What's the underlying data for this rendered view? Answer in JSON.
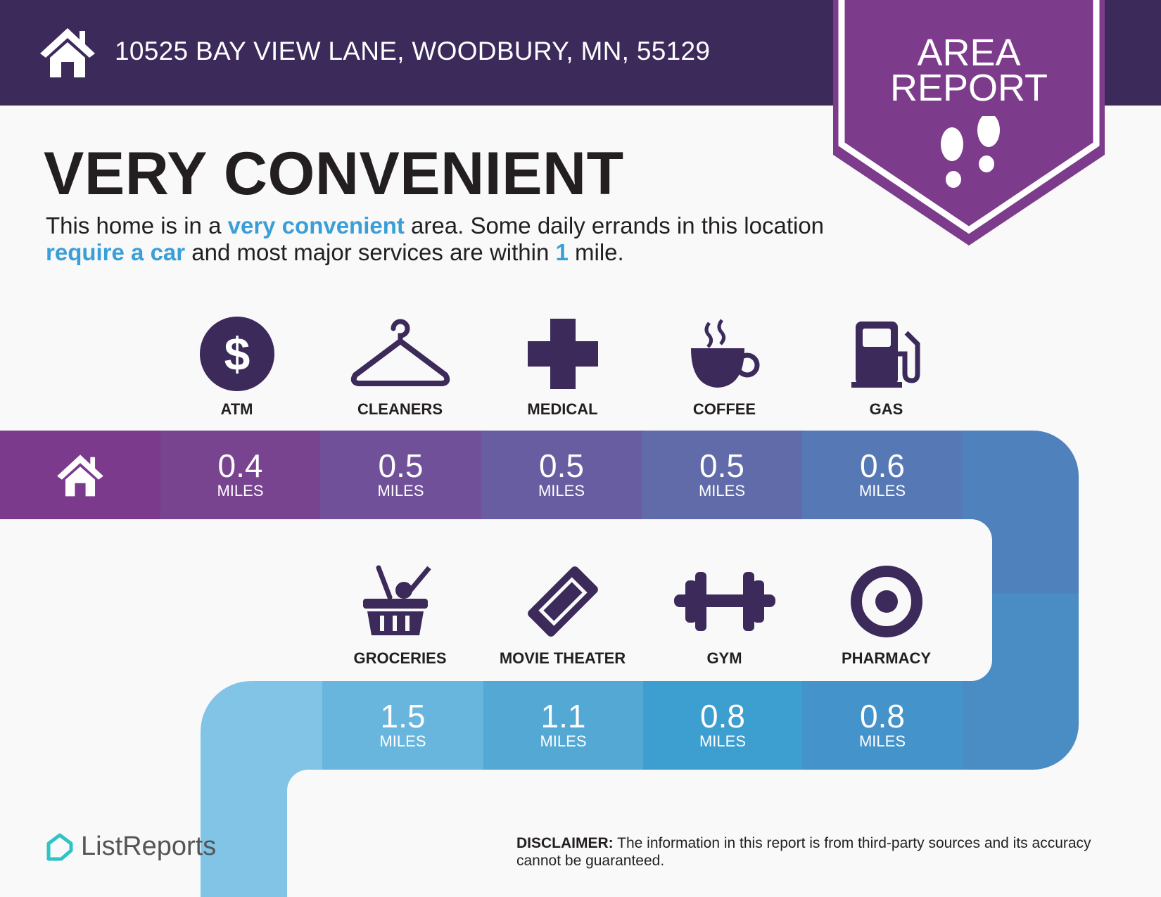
{
  "header": {
    "address": "10525 BAY VIEW LANE, WOODBURY, MN, 55129",
    "home_icon": "house-icon"
  },
  "badge": {
    "line1": "AREA",
    "line2": "REPORT",
    "icon": "footprints-icon",
    "color": "#7d3b8c"
  },
  "title": "VERY CONVENIENT",
  "description": {
    "p1": "This home is in a ",
    "h1": "very convenient",
    "p2": " area. Some daily errands in this location ",
    "h2": "require a car",
    "p3": " and most major services are within ",
    "h3": "1",
    "p4": " mile."
  },
  "colors": {
    "header": "#3b2a5a",
    "icon": "#3b2a5a",
    "highlight": "#3a9fd8"
  },
  "row1": [
    {
      "label": "ATM",
      "value": "0.4",
      "unit": "MILES",
      "icon": "dollar-icon",
      "color": "#78448f"
    },
    {
      "label": "CLEANERS",
      "value": "0.5",
      "unit": "MILES",
      "icon": "hanger-icon",
      "color": "#71509a"
    },
    {
      "label": "MEDICAL",
      "value": "0.5",
      "unit": "MILES",
      "icon": "medical-cross-icon",
      "color": "#695da1"
    },
    {
      "label": "COFFEE",
      "value": "0.5",
      "unit": "MILES",
      "icon": "coffee-cup-icon",
      "color": "#616ba9"
    },
    {
      "label": "GAS",
      "value": "0.6",
      "unit": "MILES",
      "icon": "gas-pump-icon",
      "color": "#5679b6"
    }
  ],
  "row2": [
    {
      "label": "GROCERIES",
      "value": "1.5",
      "unit": "MILES",
      "icon": "grocery-basket-icon",
      "color": "#68b6dd"
    },
    {
      "label": "MOVIE THEATER",
      "value": "1.1",
      "unit": "MILES",
      "icon": "ticket-icon",
      "color": "#54a8d4"
    },
    {
      "label": "GYM",
      "value": "0.8",
      "unit": "MILES",
      "icon": "dumbbell-icon",
      "color": "#3d9ed0"
    },
    {
      "label": "PHARMACY",
      "value": "0.8",
      "unit": "MILES",
      "icon": "target-icon",
      "color": "#4493ca"
    }
  ],
  "footer": {
    "logo": "ListReports",
    "disclaimer_label": "DISCLAIMER:",
    "disclaimer_text": " The information in this report is from third-party sources and its accuracy cannot be guaranteed."
  }
}
